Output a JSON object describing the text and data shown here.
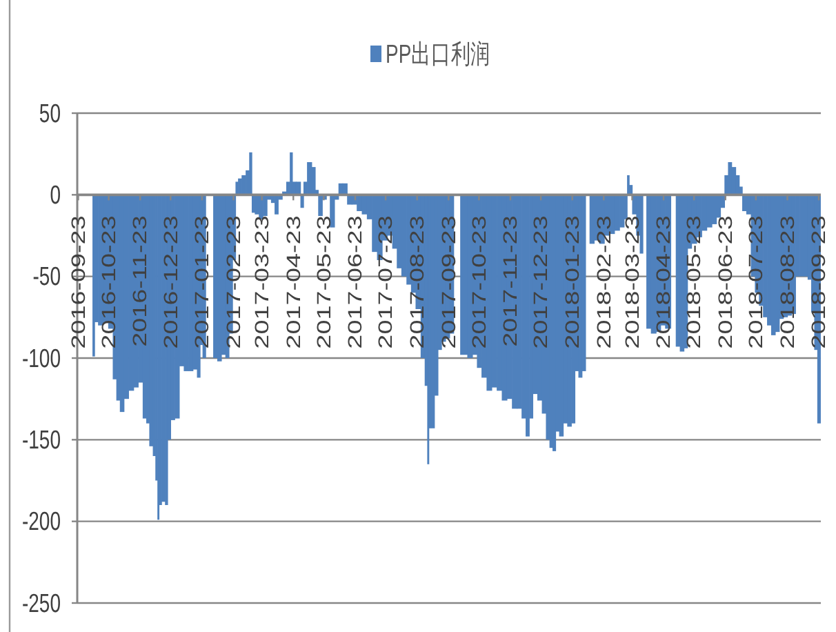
{
  "chart_data": {
    "type": "bar",
    "x": [
      "2016-10-08",
      "2016-10-10",
      "2016-10-15",
      "2016-10-20",
      "2016-10-25",
      "2016-10-29",
      "2016-11-01",
      "2016-11-05",
      "2016-11-09",
      "2016-11-14",
      "2016-11-19",
      "2016-11-23",
      "2016-11-28",
      "2016-11-30",
      "2016-12-04",
      "2016-12-07",
      "2016-12-09",
      "2016-12-11",
      "2016-12-12",
      "2016-12-16",
      "2016-12-19",
      "2016-12-21",
      "2016-12-25",
      "2016-12-29",
      "2017-01-03",
      "2017-01-07",
      "2017-01-12",
      "2017-01-16",
      "2017-01-20",
      "2017-01-22",
      "2017-01-25",
      "2017-01-28",
      "2017-02-01",
      "2017-02-05",
      "2017-02-09",
      "2017-02-13",
      "2017-02-17",
      "2017-02-20",
      "2017-02-24",
      "2017-02-26",
      "2017-03-01",
      "2017-03-05",
      "2017-03-09",
      "2017-03-12",
      "2017-03-14",
      "2017-03-18",
      "2017-03-22",
      "2017-03-26",
      "2017-03-30",
      "2017-04-03",
      "2017-04-06",
      "2017-04-10",
      "2017-04-14",
      "2017-04-18",
      "2017-04-21",
      "2017-04-23",
      "2017-04-28",
      "2017-05-02",
      "2017-05-04",
      "2017-05-09",
      "2017-05-13",
      "2017-05-16",
      "2017-05-19",
      "2017-05-24",
      "2017-05-27",
      "2017-05-31",
      "2017-06-05",
      "2017-06-08",
      "2017-06-13",
      "2017-06-17",
      "2017-06-22",
      "2017-06-27",
      "2017-07-02",
      "2017-07-07",
      "2017-07-12",
      "2017-07-17",
      "2017-07-22",
      "2017-07-27",
      "2017-08-01",
      "2017-08-05",
      "2017-08-10",
      "2017-08-15",
      "2017-08-19",
      "2017-08-24",
      "2017-08-29",
      "2017-09-01",
      "2017-09-03",
      "2017-09-04",
      "2017-09-07",
      "2017-09-11",
      "2017-09-14",
      "2017-09-18",
      "2017-09-22",
      "2017-09-26",
      "2017-09-30",
      "2017-10-09",
      "2017-10-14",
      "2017-10-19",
      "2017-10-23",
      "2017-10-28",
      "2017-11-02",
      "2017-11-07",
      "2017-11-12",
      "2017-11-17",
      "2017-11-22",
      "2017-11-27",
      "2017-12-02",
      "2017-12-06",
      "2017-12-10",
      "2017-12-13",
      "2017-12-17",
      "2017-12-22",
      "2017-12-26",
      "2017-12-30",
      "2018-01-02",
      "2018-01-05",
      "2018-01-08",
      "2018-01-12",
      "2018-01-16",
      "2018-01-20",
      "2018-01-24",
      "2018-01-27",
      "2018-01-31",
      "2018-02-03",
      "2018-02-07",
      "2018-02-11",
      "2018-02-16",
      "2018-02-21",
      "2018-02-26",
      "2018-03-03",
      "2018-03-08",
      "2018-03-13",
      "2018-03-17",
      "2018-03-19",
      "2018-03-21",
      "2018-03-25",
      "2018-03-29",
      "2018-04-01",
      "2018-04-04",
      "2018-04-08",
      "2018-04-13",
      "2018-04-18",
      "2018-04-22",
      "2018-04-27",
      "2018-05-03",
      "2018-05-07",
      "2018-05-11",
      "2018-05-15",
      "2018-05-18",
      "2018-05-23",
      "2018-05-28",
      "2018-06-02",
      "2018-06-07",
      "2018-06-12",
      "2018-06-16",
      "2018-06-20",
      "2018-06-24",
      "2018-06-27",
      "2018-07-01",
      "2018-07-05",
      "2018-07-08",
      "2018-07-11",
      "2018-07-16",
      "2018-07-20",
      "2018-07-24",
      "2018-07-28",
      "2018-08-01",
      "2018-08-05",
      "2018-08-09",
      "2018-08-13",
      "2018-08-17",
      "2018-08-21",
      "2018-08-25",
      "2018-08-29",
      "2018-09-02",
      "2018-09-06",
      "2018-09-10",
      "2018-09-14",
      "2018-09-17",
      "2018-09-20",
      "2018-09-23"
    ],
    "series": [
      {
        "name": "PP出口利润",
        "color": "#4f81bd",
        "values": [
          -99,
          -78,
          -80,
          -78,
          -82,
          -113,
          -126,
          -133,
          -125,
          -120,
          -118,
          -115,
          -137,
          -140,
          -154,
          -160,
          -175,
          -199,
          -190,
          -188,
          -190,
          -150,
          -138,
          -137,
          -105,
          -108,
          -108,
          -107,
          -112,
          -92,
          -100,
          null,
          null,
          -100,
          -102,
          -98,
          -100,
          -85,
          -40,
          8,
          10,
          12,
          15,
          26,
          -11,
          -12,
          -15,
          -13,
          -3,
          -5,
          -12,
          -3,
          2,
          8,
          26,
          8,
          8,
          -8,
          8,
          20,
          17,
          3,
          -13,
          -3,
          null,
          -20,
          -3,
          7,
          7,
          -6,
          -6,
          -10,
          -12,
          -15,
          -35,
          -40,
          -28,
          -25,
          -33,
          -45,
          -50,
          -55,
          -60,
          -70,
          -100,
          -117,
          -165,
          -143,
          -143,
          -123,
          -95,
          -90,
          -88,
          -85,
          null,
          -98,
          -100,
          -98,
          -106,
          -112,
          -120,
          -118,
          -120,
          -126,
          -125,
          -131,
          -131,
          -137,
          -148,
          -137,
          -122,
          -126,
          -134,
          -150,
          -155,
          -157,
          -145,
          -148,
          -140,
          -142,
          -140,
          -108,
          -112,
          -108,
          null,
          -30,
          -28,
          -30,
          -25,
          -24,
          -22,
          -20,
          -15,
          12,
          6,
          -12,
          -25,
          -36,
          null,
          -82,
          -85,
          -84,
          -80,
          -82,
          null,
          -93,
          -96,
          -94,
          -33,
          -30,
          -26,
          -22,
          -20,
          -18,
          -14,
          -8,
          12,
          20,
          17,
          12,
          5,
          -10,
          -12,
          -50,
          -60,
          -68,
          -75,
          -80,
          -86,
          -84,
          -76,
          -75,
          -74,
          -73,
          -50,
          -50,
          -50,
          -52,
          -72,
          -95,
          -140
        ]
      }
    ],
    "xlim": [
      "2016-09-22",
      "2018-09-25"
    ],
    "xticks": [
      "2016-09-23",
      "2016-10-23",
      "2016-11-23",
      "2016-12-23",
      "2017-01-23",
      "2017-02-23",
      "2017-03-23",
      "2017-04-23",
      "2017-05-23",
      "2017-06-23",
      "2017-07-23",
      "2017-08-23",
      "2017-09-23",
      "2017-10-23",
      "2017-11-23",
      "2017-12-23",
      "2018-01-23",
      "2018-02-23",
      "2018-03-23",
      "2018-04-23",
      "2018-05-23",
      "2018-06-23",
      "2018-07-23",
      "2018-08-23",
      "2018-09-23"
    ],
    "ylim": [
      -250,
      50
    ],
    "yticks": [
      -250,
      -200,
      -150,
      -100,
      -50,
      0,
      50
    ],
    "grid": "y",
    "legend": "top"
  }
}
